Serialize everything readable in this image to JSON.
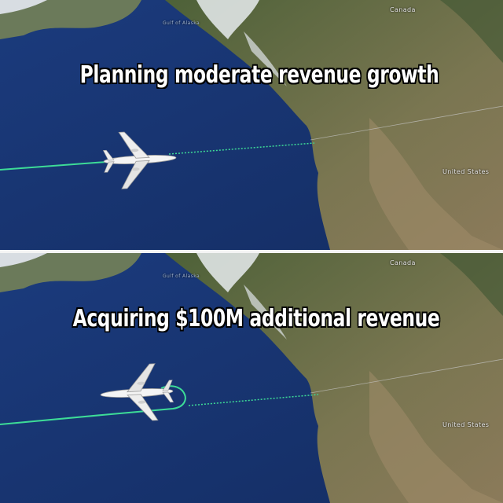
{
  "panels": [
    {
      "caption": "Planning moderate revenue growth",
      "labels": {
        "canada": "Canada",
        "us": "United States",
        "gulf": "Gulf of Alaska"
      },
      "flight": "straight"
    },
    {
      "caption": "Acquiring $100M additional revenue",
      "labels": {
        "canada": "Canada",
        "us": "United States",
        "gulf": "Gulf of Alaska"
      },
      "flight": "u-turn"
    }
  ],
  "colors": {
    "ocean": "#1f3c7a",
    "land": "#5c6a3a",
    "flight_path": "#3ddc97",
    "caption_text": "#ffffff",
    "caption_outline": "#000000"
  },
  "icons": [
    "airplane-icon"
  ]
}
